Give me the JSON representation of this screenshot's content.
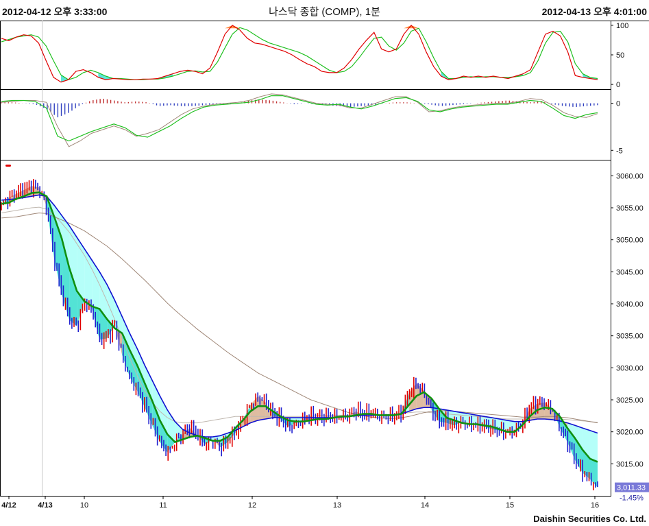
{
  "header": {
    "left_datetime": "2012-04-12 오후 3:33:00",
    "title": "나스닥 종합 (COMP), 1분",
    "right_datetime": "2012-04-13 오후 4:01:00"
  },
  "footer": {
    "brand": "Daishin Securities Co. Ltd."
  },
  "colors": {
    "frame": "#000000",
    "fast_line": "#e00000",
    "slow_line": "#20c020",
    "osc_fill": "#40e0d0",
    "osc_peak": "#ff8c40",
    "hist_pos": "#c03030",
    "hist_neg": "#3040c0",
    "candle_up": "#e00000",
    "candle_down": "#2020d0",
    "ma_short": "#109010",
    "ma_mid": "#1010d0",
    "ma_long": "#a08878",
    "ma_long2": "#c0b8b0",
    "fill_down": "#a8fff8",
    "fill_down_strong": "#40e0d0",
    "fill_up": "#d8b090",
    "price_tag": "#7a7ad8"
  },
  "chart_data": [
    {
      "panel": "stochastic",
      "type": "line",
      "yticks": [
        0,
        50,
        100
      ],
      "ylim": [
        -8,
        108
      ],
      "series": [
        {
          "role": "fast",
          "values": [
            78,
            74,
            80,
            84,
            82,
            70,
            40,
            12,
            4,
            8,
            22,
            25,
            20,
            12,
            8,
            10,
            9,
            8,
            8,
            9,
            9,
            10,
            14,
            18,
            22,
            24,
            22,
            18,
            28,
            55,
            85,
            100,
            92,
            78,
            70,
            68,
            64,
            60,
            56,
            50,
            42,
            35,
            30,
            22,
            20,
            20,
            28,
            42,
            60,
            75,
            88,
            60,
            55,
            60,
            85,
            100,
            85,
            55,
            30,
            14,
            8,
            10,
            14,
            12,
            14,
            12,
            14,
            12,
            10,
            14,
            18,
            25,
            55,
            85,
            90,
            82,
            55,
            15,
            12,
            10,
            8
          ]
        },
        {
          "role": "slow",
          "values": [
            72,
            76,
            80,
            82,
            84,
            80,
            65,
            40,
            16,
            8,
            12,
            20,
            24,
            20,
            14,
            10,
            10,
            9,
            8,
            8,
            9,
            9,
            11,
            14,
            18,
            22,
            23,
            21,
            22,
            38,
            62,
            85,
            96,
            92,
            84,
            76,
            70,
            66,
            62,
            58,
            54,
            48,
            40,
            32,
            24,
            20,
            22,
            30,
            45,
            62,
            78,
            80,
            65,
            58,
            70,
            90,
            95,
            72,
            45,
            22,
            10,
            10,
            12,
            13,
            12,
            13,
            13,
            12,
            12,
            13,
            15,
            20,
            40,
            70,
            88,
            90,
            72,
            35,
            18,
            12,
            10
          ]
        }
      ]
    },
    {
      "panel": "macd",
      "type": "line",
      "yticks": [
        0,
        -5
      ],
      "ylim": [
        -6,
        1.5
      ],
      "series": [
        {
          "role": "macd",
          "values": [
            0.2,
            0.3,
            0.3,
            0.2,
            -0.5,
            -3.5,
            -4,
            -3.5,
            -3,
            -2.6,
            -2.2,
            -2.6,
            -3.4,
            -3.6,
            -3.0,
            -2.4,
            -1.6,
            -0.9,
            -0.4,
            -0.2,
            -0.1,
            0,
            0.1,
            0.4,
            0.8,
            0.8,
            0.5,
            0.2,
            -0.1,
            -0.2,
            -0.1,
            -0.4,
            -0.6,
            -0.3,
            0.1,
            0.5,
            0.6,
            0.2,
            -0.7,
            -0.9,
            -0.6,
            -0.4,
            -0.3,
            -0.2,
            -0.1,
            -0.1,
            0.1,
            0.3,
            0.2,
            -0.5,
            -1.3,
            -1.6,
            -1.2,
            -1.0
          ]
        },
        {
          "role": "signal",
          "values": [
            0.1,
            0.2,
            0.3,
            0.3,
            0.1,
            -2.5,
            -4.6,
            -4.0,
            -3.2,
            -2.8,
            -2.4,
            -2.8,
            -3.5,
            -3.2,
            -2.8,
            -2.0,
            -1.2,
            -0.6,
            -0.3,
            -0.1,
            0,
            0.1,
            0.3,
            0.7,
            1.0,
            0.9,
            0.6,
            0.3,
            0,
            -0.1,
            -0.2,
            -0.5,
            -0.5,
            -0.1,
            0.3,
            0.7,
            0.7,
            0.1,
            -0.9,
            -0.8,
            -0.5,
            -0.3,
            -0.2,
            -0.1,
            0,
            0,
            0.2,
            0.5,
            0.4,
            -0.2,
            -1.0,
            -1.4,
            -1.5,
            -1.1
          ]
        },
        {
          "role": "histogram",
          "values": [
            0.1,
            0.1,
            0,
            -0.1,
            -0.6,
            -1.5,
            -1.0,
            -0.2,
            0.3,
            0.5,
            0.3,
            0.1,
            0.2,
            0.1,
            -0.3,
            -0.2,
            -0.3,
            -0.3,
            -0.2,
            -0.1,
            -0.1,
            0,
            0.3,
            0.4,
            0.3,
            0.1,
            -0.1,
            0,
            -0.1,
            -0.2,
            -0.3,
            -0.4,
            -0.3,
            -0.2,
            0,
            0.1,
            0.1,
            0,
            -0.1,
            -0.3,
            -0.2,
            -0.1,
            0,
            0.1,
            0.2,
            0.3,
            0.2,
            0.1,
            0.2,
            -0.1,
            -0.3,
            -0.4,
            -0.3,
            -0.2
          ]
        }
      ]
    },
    {
      "panel": "price",
      "type": "candlestick",
      "yticks": [
        3015,
        3020,
        3025,
        3030,
        3035,
        3040,
        3045,
        3050,
        3055,
        3060
      ],
      "ylim": [
        3010,
        3062.5
      ],
      "xticks": [
        "4/12",
        "4/13",
        "10",
        "11",
        "12",
        "13",
        "14",
        "15",
        "16"
      ],
      "last_price": "3,011.33",
      "change_pct": "-1.45%",
      "close": [
        3055.5,
        3056.6,
        3057.2,
        3057.8,
        3058.4,
        3058.2,
        3055.2,
        3047,
        3041.5,
        3037.5,
        3036.5,
        3040.6,
        3039.2,
        3034.4,
        3034.6,
        3036.6,
        3032,
        3028.6,
        3026.4,
        3023.8,
        3021,
        3018.4,
        3016.8,
        3018.4,
        3019.6,
        3020.6,
        3019.4,
        3018,
        3018.8,
        3017.6,
        3018.4,
        3019.8,
        3021.8,
        3024.2,
        3025.6,
        3024.6,
        3022.6,
        3022,
        3020.8,
        3021.4,
        3022,
        3022.4,
        3022,
        3022.4,
        3022.4,
        3022.6,
        3022.6,
        3023.2,
        3022.6,
        3023,
        3022.6,
        3022.6,
        3022.4,
        3022.8,
        3026,
        3027.6,
        3026.4,
        3023.4,
        3021.6,
        3021.4,
        3021,
        3021.6,
        3021.4,
        3021,
        3020.8,
        3020.4,
        3020.2,
        3020.2,
        3020.2,
        3021.2,
        3023.6,
        3024.4,
        3024.6,
        3023.6,
        3020.6,
        3018.4,
        3015.6,
        3013.6,
        3012.6,
        3011.3
      ],
      "ma_short": [
        3055.6,
        3055.8,
        3056.4,
        3056.8,
        3057.3,
        3057.4,
        3056.8,
        3053.6,
        3050.2,
        3045.6,
        3042,
        3040.4,
        3039.6,
        3039.2,
        3037.6,
        3036.2,
        3035.4,
        3032.8,
        3030.4,
        3027.6,
        3024.8,
        3021.8,
        3019.6,
        3018.4,
        3018.8,
        3019.2,
        3019.4,
        3019,
        3018.6,
        3018.6,
        3019.2,
        3020.6,
        3021.8,
        3023.2,
        3024,
        3024,
        3023.2,
        3022.4,
        3021.8,
        3021.6,
        3021.6,
        3021.8,
        3022,
        3022,
        3022.2,
        3022.4,
        3022.4,
        3022.6,
        3022.8,
        3022.8,
        3022.6,
        3022.6,
        3022.6,
        3022.8,
        3024.2,
        3025.6,
        3026.2,
        3025.2,
        3023.6,
        3022.2,
        3021.8,
        3021.4,
        3021.2,
        3021.2,
        3021,
        3020.8,
        3020.4,
        3020,
        3020,
        3021,
        3022.4,
        3023.4,
        3023.8,
        3023.6,
        3022.4,
        3020.6,
        3019,
        3017.2,
        3015.8,
        3015.3
      ],
      "ma_mid": [
        3056.2,
        3056.3,
        3056.4,
        3056.6,
        3056.8,
        3057,
        3056.8,
        3055.4,
        3053.8,
        3052.2,
        3050.4,
        3048.6,
        3046.8,
        3045,
        3043,
        3040.6,
        3038,
        3035.4,
        3033,
        3030.4,
        3028,
        3025.6,
        3023.4,
        3021.6,
        3020.4,
        3019.8,
        3019.4,
        3019.2,
        3019.2,
        3019.4,
        3019.8,
        3020.2,
        3020.8,
        3021.4,
        3021.8,
        3022,
        3022.2,
        3022.2,
        3022.2,
        3022.2,
        3022.2,
        3022.2,
        3022.2,
        3022.2,
        3022.2,
        3022.3,
        3022.4,
        3022.5,
        3022.6,
        3022.6,
        3022.6,
        3022.6,
        3022.6,
        3022.8,
        3023.2,
        3023.6,
        3023.8,
        3023.8,
        3023.6,
        3023.4,
        3023.2,
        3023,
        3022.8,
        3022.6,
        3022.4,
        3022.2,
        3022,
        3021.8,
        3021.6,
        3021.6,
        3021.8,
        3022,
        3022,
        3021.9,
        3021.7,
        3021.4,
        3021,
        3020.6,
        3020.2,
        3019.8
      ],
      "ma_long": [
        3053.4,
        3053.5,
        3053.6,
        3053.8,
        3054,
        3054.2,
        3054.1,
        3053.6,
        3053.1,
        3052.6,
        3052,
        3051.4,
        3050.6,
        3049.8,
        3049,
        3048,
        3047,
        3045.9,
        3044.8,
        3043.7,
        3042.5,
        3041.3,
        3040.1,
        3039,
        3038,
        3037,
        3036,
        3035.1,
        3034.2,
        3033.3,
        3032.4,
        3031.6,
        3030.8,
        3030,
        3029.2,
        3028.6,
        3028,
        3027.4,
        3026.8,
        3026.2,
        3025.6,
        3025,
        3024.6,
        3024.2,
        3023.8,
        3023.4,
        3023,
        3022.8,
        3022.5,
        3022.3,
        3022.2,
        3022.1,
        3022.1,
        3022.2,
        3022.4,
        3022.7,
        3023,
        3023.2,
        3023.3,
        3023.3,
        3023.2,
        3023.1,
        3023,
        3022.9,
        3022.8,
        3022.7,
        3022.6,
        3022.5,
        3022.4,
        3022.3,
        3022.3,
        3022.3,
        3022.4,
        3022.4,
        3022.3,
        3022.2,
        3022,
        3021.8,
        3021.6,
        3021.4
      ],
      "ma_long2": [
        3054.2,
        3054.4,
        3054.6,
        3054.8,
        3055,
        3055.1,
        3054.8,
        3053.8,
        3052.6,
        3051.2,
        3049.4,
        3047.6,
        3045.4,
        3043,
        3040.4,
        3037.6,
        3034.6,
        3031.6,
        3028.8,
        3026.4,
        3024.6,
        3023.2,
        3022.2,
        3021.6,
        3021.4,
        3021.4,
        3021.4,
        3021.6,
        3021.8,
        3022,
        3022.2,
        3022.4,
        3022.4,
        3022.4,
        3022.4,
        3022.4,
        3022.4,
        3022.4,
        3022.4,
        3022.4,
        3022.4,
        3022.4,
        3022.5,
        3022.5,
        3022.6,
        3022.6,
        3022.6,
        3022.6,
        3022.6,
        3022.6,
        3022.6,
        3022.7,
        3022.8,
        3022.9,
        3023,
        3023.1,
        3023.1,
        3023,
        3022.9,
        3022.8,
        3022.7,
        3022.6,
        3022.5,
        3022.4,
        3022.3,
        3022.2,
        3022.1,
        3022,
        3022,
        3022,
        3022.1,
        3022.2,
        3022.2,
        3022.1,
        3022,
        3021.9,
        3021.8,
        3021.7,
        3021.6,
        3021.5
      ]
    }
  ]
}
